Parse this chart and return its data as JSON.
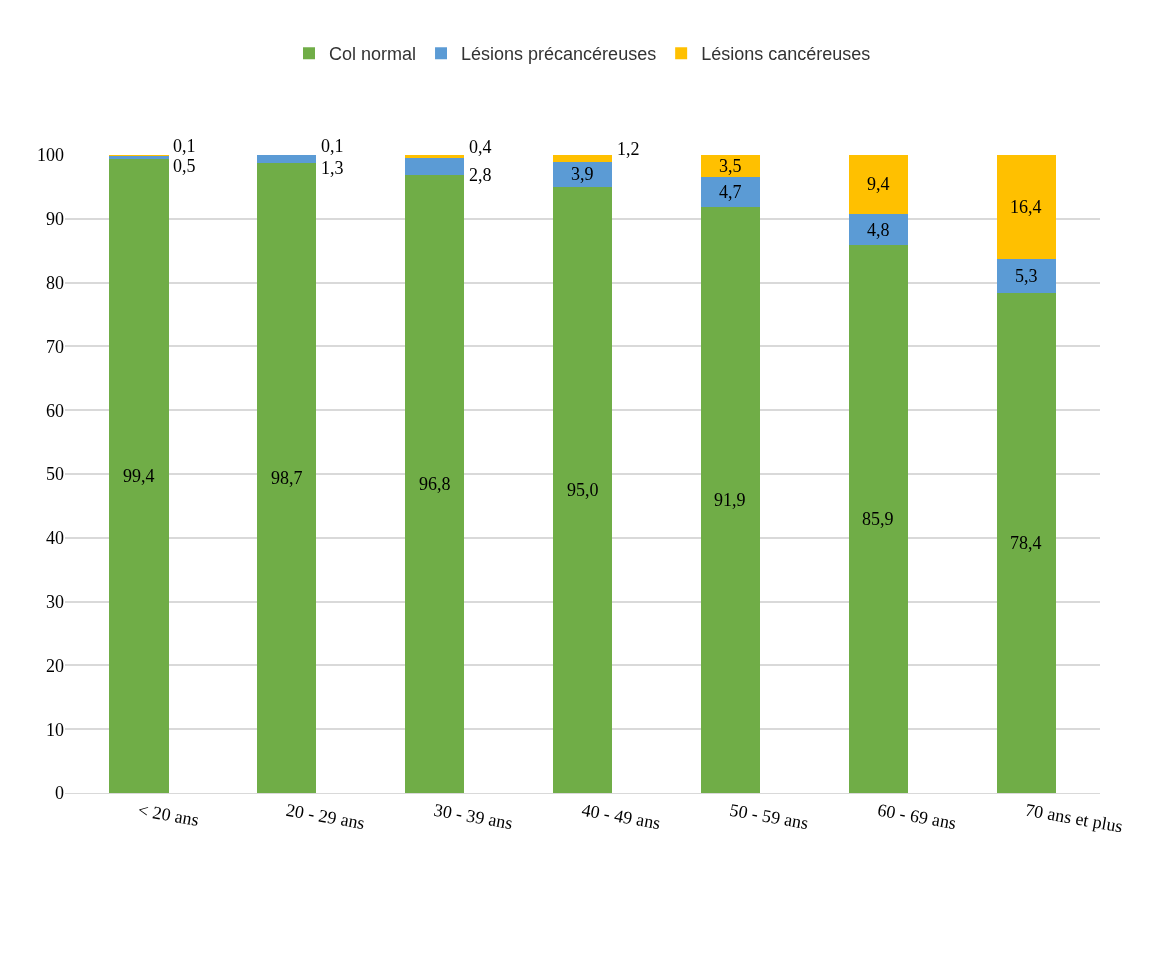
{
  "chart_data": {
    "type": "bar",
    "stacked": true,
    "categories": [
      "< 20 ans",
      "20 - 29 ans",
      "30 - 39 ans",
      "40 - 49 ans",
      "50 - 59 ans",
      "60 - 69 ans",
      "70 ans et plus"
    ],
    "series": [
      {
        "name": "Col normal",
        "color": "#70ad47",
        "values": [
          99.4,
          98.7,
          96.8,
          95.0,
          91.9,
          85.9,
          78.4
        ],
        "value_labels": [
          "99,4",
          "98,7",
          "96,8",
          "95,0",
          "91,9",
          "85,9",
          "78,4"
        ]
      },
      {
        "name": "Lésions précancéreuses",
        "color": "#5b9bd5",
        "values": [
          0.5,
          1.3,
          2.8,
          3.9,
          4.7,
          4.8,
          5.3
        ],
        "value_labels": [
          "0,5",
          "1,3",
          "2,8",
          "3,9",
          "4,7",
          "4,8",
          "5,3"
        ]
      },
      {
        "name": "Lésions cancéreuses",
        "color": "#ffc000",
        "values": [
          0.1,
          0.1,
          0.4,
          1.2,
          3.5,
          9.4,
          16.4
        ],
        "value_labels": [
          "0,1",
          "0,1",
          "0,4",
          "1,2",
          "3,5",
          "9,4",
          "16,4"
        ]
      }
    ],
    "ylim": [
      0,
      100
    ],
    "yticks": [
      0,
      10,
      20,
      30,
      40,
      50,
      60,
      70,
      80,
      90,
      100
    ],
    "grid": "y",
    "legend": "top"
  }
}
